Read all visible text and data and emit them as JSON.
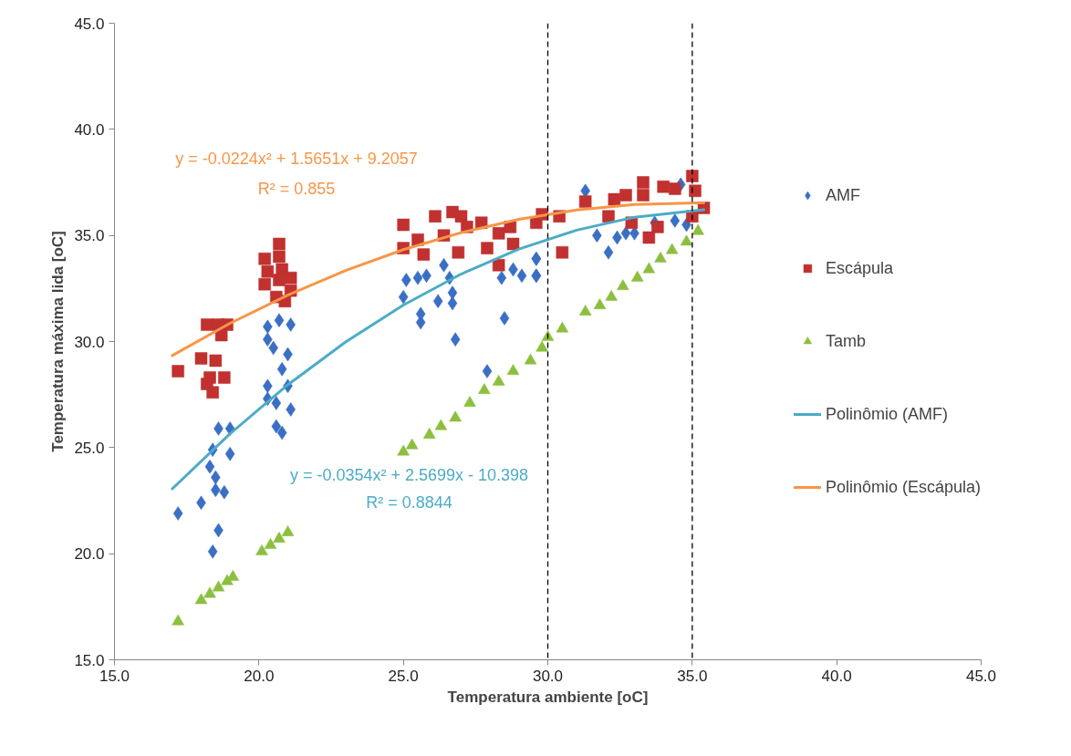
{
  "chart_data": {
    "type": "scatter",
    "xlabel": "Temperatura ambiente [oC]",
    "ylabel": "Temperatura máxima lida [oC]",
    "xlim": [
      15,
      45
    ],
    "ylim": [
      15,
      45
    ],
    "xticks": [
      {
        "value": 15,
        "label": "15.0"
      },
      {
        "value": 20,
        "label": "20.0"
      },
      {
        "value": 25,
        "label": "25.0"
      },
      {
        "value": 30,
        "label": "30.0"
      },
      {
        "value": 35,
        "label": "35.0"
      },
      {
        "value": 40,
        "label": "40.0"
      },
      {
        "value": 45,
        "label": "45.0"
      }
    ],
    "yticks": [
      {
        "value": 15,
        "label": "15.0"
      },
      {
        "value": 20,
        "label": "20.0"
      },
      {
        "value": 25,
        "label": "25.0"
      },
      {
        "value": 30,
        "label": "30.0"
      },
      {
        "value": 35,
        "label": "35.0"
      },
      {
        "value": 40,
        "label": "40.0"
      },
      {
        "value": 45,
        "label": "45.0"
      }
    ],
    "grid": false,
    "legend": "right",
    "series": [
      {
        "name": "AMF",
        "marker": "diamond",
        "color": "#3a6fc4",
        "x": [
          17.2,
          18.0,
          18.5,
          18.8,
          18.5,
          18.3,
          19.0,
          18.4,
          18.6,
          19.0,
          18.6,
          18.4,
          20.3,
          20.7,
          21.1,
          20.3,
          20.5,
          21.0,
          20.8,
          20.3,
          21.0,
          20.3,
          20.6,
          21.1,
          20.6,
          20.8,
          25.0,
          25.1,
          25.5,
          25.8,
          26.4,
          26.6,
          26.2,
          26.7,
          26.7,
          25.6,
          25.6,
          26.8,
          27.9,
          28.5,
          28.4,
          28.8,
          29.1,
          29.6,
          29.6,
          31.3,
          31.7,
          32.1,
          32.4,
          32.7,
          33.0,
          33.7,
          34.4,
          34.6,
          29.6,
          29.6,
          34.8
        ],
        "values": [
          21.9,
          22.4,
          23.0,
          22.9,
          23.6,
          24.1,
          24.7,
          24.9,
          25.9,
          25.9,
          21.1,
          20.1,
          30.7,
          31.0,
          30.8,
          30.1,
          29.7,
          29.4,
          28.7,
          27.9,
          27.9,
          27.3,
          27.1,
          26.8,
          26.0,
          25.7,
          32.1,
          32.9,
          33.0,
          33.1,
          33.6,
          33.0,
          31.9,
          32.3,
          31.8,
          31.3,
          30.9,
          30.1,
          28.6,
          31.1,
          33.0,
          33.4,
          33.1,
          33.1,
          33.9,
          37.1,
          35.0,
          34.2,
          34.9,
          35.1,
          35.1,
          35.6,
          35.7,
          37.4,
          33.9,
          33.1,
          35.5
        ]
      },
      {
        "name": "Escápula",
        "marker": "square",
        "color": "#c0312f",
        "x": [
          17.2,
          18.2,
          18.6,
          18.9,
          18.7,
          18.0,
          18.5,
          18.3,
          18.8,
          18.4,
          18.2,
          20.7,
          20.2,
          20.7,
          20.3,
          20.8,
          21.1,
          20.2,
          20.7,
          21.1,
          20.9,
          20.6,
          25.0,
          25.0,
          25.5,
          25.7,
          26.1,
          26.7,
          27.0,
          26.4,
          26.9,
          27.2,
          27.9,
          28.3,
          28.7,
          28.3,
          28.8,
          29.6,
          27.7,
          31.3,
          30.5,
          32.3,
          32.7,
          33.3,
          33.3,
          34.0,
          34.4,
          35.0,
          35.1,
          32.1,
          32.9,
          33.5,
          33.8,
          35.0,
          35.4,
          29.8,
          30.4
        ],
        "values": [
          28.6,
          30.8,
          30.8,
          30.8,
          30.3,
          29.2,
          29.1,
          28.3,
          28.3,
          27.6,
          28.0,
          34.6,
          33.9,
          34.0,
          33.3,
          33.4,
          33.0,
          32.7,
          32.9,
          32.4,
          31.9,
          32.1,
          35.5,
          34.4,
          34.8,
          34.1,
          35.9,
          36.1,
          35.9,
          35.0,
          34.2,
          35.4,
          34.4,
          35.1,
          35.4,
          33.6,
          34.6,
          35.6,
          35.6,
          36.6,
          34.2,
          36.7,
          36.9,
          37.5,
          36.9,
          37.3,
          37.2,
          37.8,
          37.1,
          35.9,
          35.6,
          34.9,
          35.4,
          35.9,
          36.3,
          36.0,
          35.9
        ]
      },
      {
        "name": "Tamb",
        "marker": "triangle",
        "color": "#8cbf3f",
        "x": [
          17.2,
          18.0,
          18.3,
          18.6,
          18.9,
          19.1,
          20.1,
          20.4,
          20.7,
          21.0,
          25.0,
          25.3,
          25.9,
          26.3,
          26.8,
          27.3,
          27.8,
          28.3,
          28.8,
          29.4,
          29.8,
          30.0,
          30.5,
          31.3,
          31.8,
          32.2,
          32.6,
          33.1,
          33.5,
          33.9,
          34.3,
          34.8,
          35.2
        ],
        "values": [
          16.8,
          17.8,
          18.1,
          18.4,
          18.7,
          18.9,
          20.1,
          20.4,
          20.7,
          21.0,
          24.8,
          25.1,
          25.6,
          26.0,
          26.4,
          27.1,
          27.7,
          28.1,
          28.6,
          29.1,
          29.7,
          30.2,
          30.6,
          31.4,
          31.7,
          32.1,
          32.6,
          33.0,
          33.4,
          33.9,
          34.3,
          34.7,
          35.2
        ]
      },
      {
        "name": "Polinômio (AMF)",
        "type": "line",
        "color": "#4bacc6",
        "x": [
          17,
          19,
          21,
          23,
          25,
          27,
          29,
          31,
          33,
          35.4
        ],
        "values": [
          23.06,
          25.65,
          27.96,
          29.98,
          31.72,
          33.18,
          34.36,
          35.25,
          35.86,
          36.21
        ]
      },
      {
        "name": "Polinômio (Escápula)",
        "type": "line",
        "color": "#f79646",
        "x": [
          17,
          19,
          21,
          23,
          25,
          27,
          29,
          31,
          33,
          35.4
        ],
        "values": [
          29.34,
          30.86,
          32.19,
          33.35,
          34.33,
          35.13,
          35.76,
          36.2,
          36.46,
          36.54
        ]
      }
    ],
    "ref_lines": [
      {
        "axis": "x",
        "value": 30,
        "color": "#000000",
        "line_style": "dashed"
      },
      {
        "axis": "x",
        "value": 35,
        "color": "#000000",
        "line_style": "dashed"
      }
    ],
    "annotations": [
      "y = -0.0224x² + 1.5651x + 9.2057",
      "R² = 0.855",
      "y = -0.0354x² + 2.5699x - 10.398",
      "R² = 0.8844"
    ]
  }
}
